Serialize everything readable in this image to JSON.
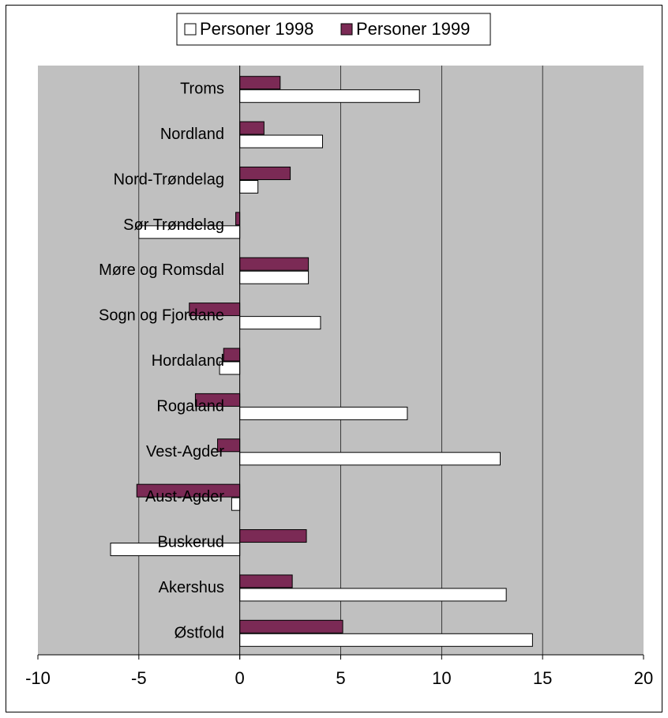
{
  "chart_data": {
    "type": "bar",
    "orientation": "horizontal",
    "title": "",
    "xlabel": "",
    "ylabel": "",
    "xlim": [
      -10,
      20
    ],
    "xticks": [
      -10,
      -5,
      0,
      5,
      10,
      15,
      20
    ],
    "grid": true,
    "legend_position": "top",
    "categories": [
      "Troms",
      "Nordland",
      "Nord-Trøndelag",
      "Sør Trøndelag",
      "Møre og Romsdal",
      "Sogn og Fjordane",
      "Hordaland",
      "Rogaland",
      "Vest-Agder",
      "Aust-Agder",
      "Buskerud",
      "Akershus",
      "Østfold"
    ],
    "series": [
      {
        "name": "Personer 1998",
        "color": "#ffffff",
        "values": [
          8.9,
          4.1,
          0.9,
          -5.0,
          3.4,
          4.0,
          -1.0,
          8.3,
          12.9,
          -0.4,
          -6.4,
          13.2,
          14.5
        ]
      },
      {
        "name": "Personer 1999",
        "color": "#7b2a55",
        "values": [
          2.0,
          1.2,
          2.5,
          -0.2,
          3.4,
          -2.5,
          -0.8,
          -2.2,
          -1.1,
          -5.1,
          3.3,
          2.6,
          5.1
        ]
      }
    ],
    "colors": {
      "plot_background": "#c0c0c0",
      "gridline": "#000000"
    }
  }
}
